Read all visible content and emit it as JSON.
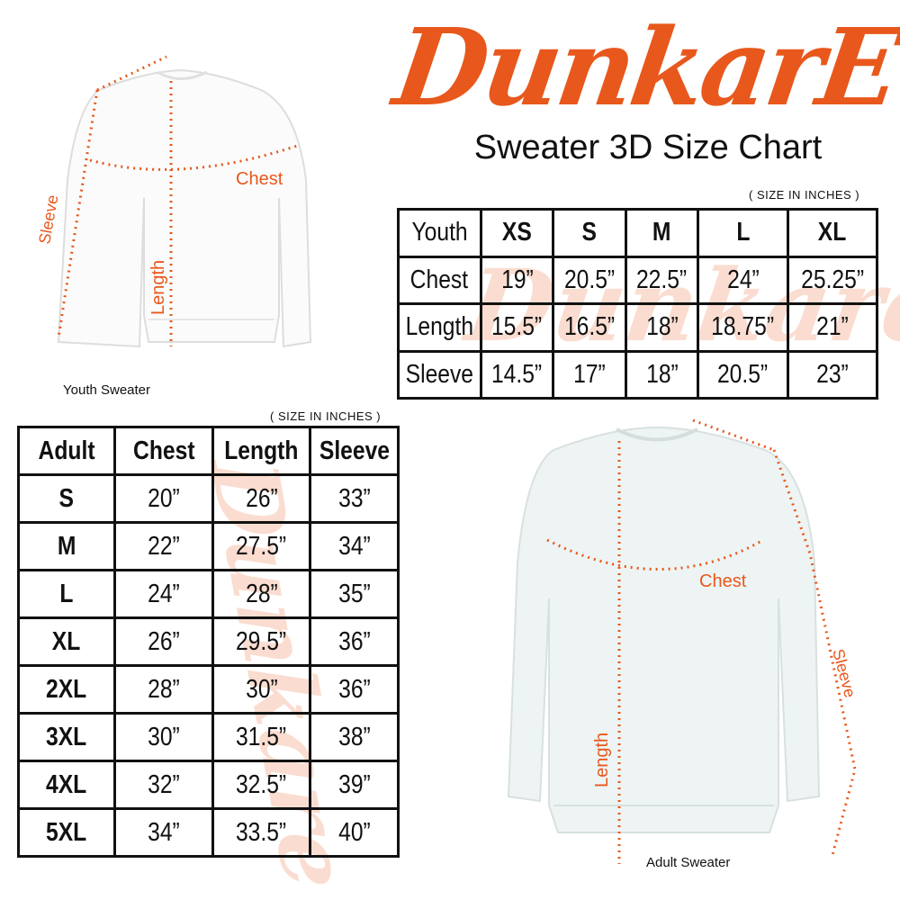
{
  "brand": {
    "logo_text": "DunkarE",
    "color": "#e8581c"
  },
  "title": "Sweater 3D Size Chart",
  "youth_chart": {
    "unit_note": "( SIZE IN INCHES )",
    "headers": [
      "Youth",
      "XS",
      "S",
      "M",
      "L",
      "XL"
    ],
    "rows": [
      {
        "label": "Chest",
        "values": [
          "19”",
          "20.5”",
          "22.5”",
          "24”",
          "25.25”"
        ]
      },
      {
        "label": "Length",
        "values": [
          "15.5”",
          "16.5”",
          "18”",
          "18.75”",
          "21”"
        ]
      },
      {
        "label": "Sleeve",
        "values": [
          "14.5”",
          "17”",
          "18”",
          "20.5”",
          "23”"
        ]
      }
    ]
  },
  "adult_chart": {
    "unit_note": "( SIZE IN INCHES )",
    "headers": [
      "Adult",
      "Chest",
      "Length",
      "Sleeve"
    ],
    "rows": [
      {
        "size": "S",
        "values": [
          "20”",
          "26”",
          "33”"
        ]
      },
      {
        "size": "M",
        "values": [
          "22”",
          "27.5”",
          "34”"
        ]
      },
      {
        "size": "L",
        "values": [
          "24”",
          "28”",
          "35”"
        ]
      },
      {
        "size": "XL",
        "values": [
          "26”",
          "29.5”",
          "36”"
        ]
      },
      {
        "size": "2XL",
        "values": [
          "28”",
          "30”",
          "36”"
        ]
      },
      {
        "size": "3XL",
        "values": [
          "30”",
          "31.5”",
          "38”"
        ]
      },
      {
        "size": "4XL",
        "values": [
          "32”",
          "32.5”",
          "39”"
        ]
      },
      {
        "size": "5XL",
        "values": [
          "34”",
          "33.5”",
          "40”"
        ]
      }
    ]
  },
  "youth_diagram": {
    "caption": "Youth Sweater",
    "chest": "Chest",
    "length": "Length",
    "sleeve": "Sleeve",
    "garment_color": "#fbfbfb"
  },
  "adult_diagram": {
    "caption": "Adult Sweater",
    "chest": "Chest",
    "length": "Length",
    "sleeve": "Sleeve",
    "garment_color": "#eef4f4"
  },
  "measure_color": "#e8581c"
}
